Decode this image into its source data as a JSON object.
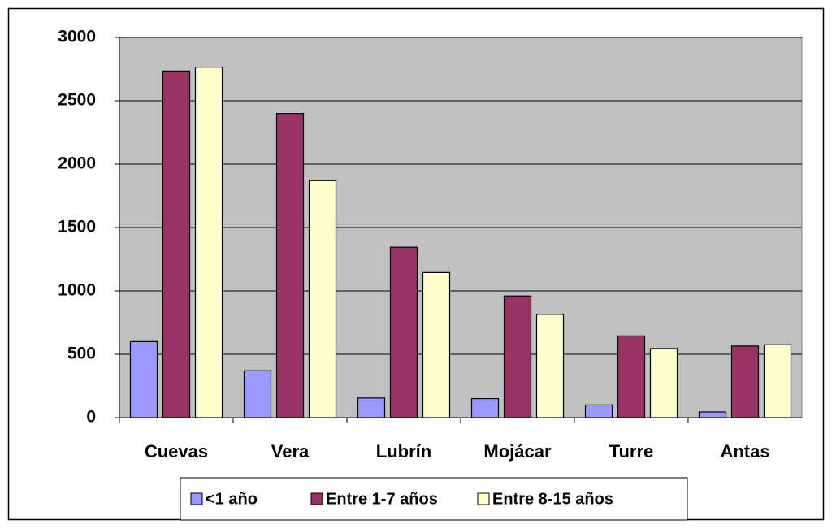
{
  "chart_data": {
    "type": "bar",
    "categories": [
      "Cuevas",
      "Vera",
      "Lubrín",
      "Mojácar",
      "Turre",
      "Antas"
    ],
    "series": [
      {
        "name": "<1 año",
        "color": "#9999ff",
        "values": [
          600,
          370,
          155,
          150,
          100,
          45
        ]
      },
      {
        "name": "Entre 1-7 años",
        "color": "#993366",
        "values": [
          2735,
          2400,
          1345,
          960,
          645,
          565
        ]
      },
      {
        "name": "Entre 8-15 años",
        "color": "#ffffcc",
        "values": [
          2765,
          1870,
          1145,
          815,
          545,
          575
        ]
      }
    ],
    "ylim": [
      0,
      3000
    ],
    "yticks": [
      0,
      500,
      1000,
      1500,
      2000,
      2500,
      3000
    ],
    "grid": true,
    "legend": "bottom"
  }
}
